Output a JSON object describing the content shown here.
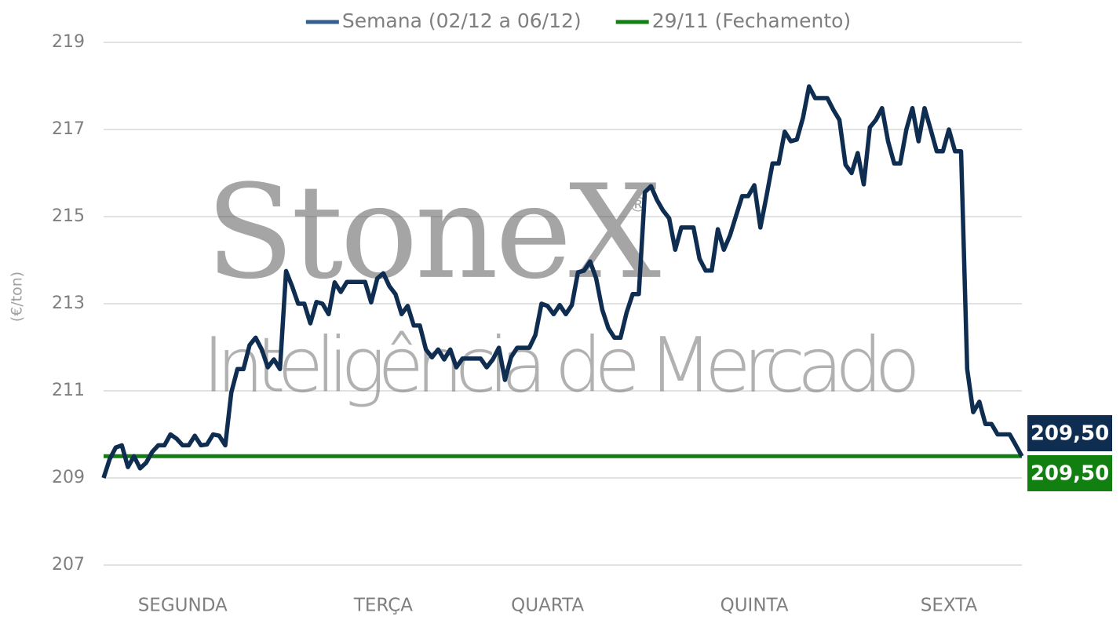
{
  "chart_data": {
    "type": "line",
    "y_label": "(€/ton)",
    "watermark": {
      "brand": "StoneX",
      "registered": "®",
      "tagline": "Inteligência de Mercado"
    },
    "categories": [
      null,
      null,
      null,
      null,
      null,
      null,
      null,
      null,
      null,
      null,
      null,
      null,
      null,
      "SEGUNDA",
      null,
      null,
      null,
      null,
      null,
      null,
      null,
      null,
      null,
      null,
      null,
      null,
      null,
      null,
      null,
      null,
      null,
      null,
      null,
      null,
      null,
      null,
      null,
      null,
      null,
      null,
      null,
      null,
      null,
      null,
      null,
      null,
      "TERÇA",
      null,
      null,
      null,
      null,
      null,
      null,
      null,
      null,
      null,
      null,
      null,
      null,
      null,
      null,
      null,
      null,
      null,
      null,
      null,
      null,
      null,
      null,
      null,
      null,
      null,
      null,
      "QUARTA",
      null,
      null,
      null,
      null,
      null,
      null,
      null,
      null,
      null,
      null,
      null,
      null,
      null,
      null,
      null,
      null,
      null,
      null,
      null,
      null,
      null,
      null,
      null,
      null,
      null,
      null,
      null,
      null,
      null,
      null,
      null,
      null,
      null,
      "QUINTA",
      null,
      null,
      null,
      null,
      null,
      null,
      null,
      null,
      null,
      null,
      null,
      null,
      null,
      null,
      null,
      null,
      null,
      null,
      null,
      null,
      null,
      null,
      null,
      null,
      null,
      null,
      null,
      null,
      null,
      null,
      null,
      "SEXTA",
      null,
      null,
      null,
      null,
      null,
      null,
      null,
      null,
      null,
      null,
      null,
      null
    ],
    "series": [
      {
        "name": "Semana (02/12 a 06/12)",
        "color": "#0e2d50",
        "legend_color": "#355f8d",
        "end_label": "209,50",
        "values": [
          209.0,
          209.43,
          209.7,
          209.75,
          209.25,
          209.5,
          209.22,
          209.35,
          209.6,
          209.75,
          209.75,
          210.0,
          209.9,
          209.75,
          209.75,
          209.97,
          209.75,
          209.77,
          210.0,
          209.97,
          209.75,
          210.96,
          211.5,
          211.5,
          212.05,
          212.22,
          211.95,
          211.54,
          211.72,
          211.5,
          213.75,
          213.4,
          213.0,
          213.0,
          212.55,
          213.04,
          213.0,
          212.76,
          213.49,
          213.27,
          213.5,
          213.5,
          213.5,
          213.5,
          213.03,
          213.58,
          213.7,
          213.4,
          213.22,
          212.76,
          212.95,
          212.5,
          212.5,
          211.95,
          211.77,
          211.95,
          211.72,
          211.95,
          211.54,
          211.74,
          211.74,
          211.74,
          211.74,
          211.54,
          211.72,
          211.99,
          211.25,
          211.77,
          211.99,
          211.99,
          211.99,
          212.28,
          213.0,
          212.95,
          212.76,
          212.97,
          212.76,
          212.97,
          213.72,
          213.76,
          213.97,
          213.58,
          212.86,
          212.44,
          212.22,
          212.22,
          212.8,
          213.22,
          213.22,
          215.56,
          215.7,
          215.38,
          215.14,
          214.96,
          214.24,
          214.75,
          214.75,
          214.75,
          214.03,
          213.76,
          213.76,
          214.71,
          214.24,
          214.57,
          215.02,
          215.47,
          215.47,
          215.72,
          214.75,
          215.47,
          216.22,
          216.22,
          216.95,
          216.73,
          216.77,
          217.27,
          217.99,
          217.72,
          217.72,
          217.72,
          217.45,
          217.22,
          216.19,
          216.0,
          216.46,
          215.74,
          217.05,
          217.22,
          217.49,
          216.73,
          216.22,
          216.22,
          217.0,
          217.49,
          216.73,
          217.49,
          217.0,
          216.5,
          216.5,
          217.0,
          216.5,
          216.5,
          211.5,
          210.51,
          210.75,
          210.24,
          210.24,
          210.0,
          210.0,
          210.0,
          209.75,
          209.5
        ]
      },
      {
        "name": "29/11 (Fechamento)",
        "color": "#118011",
        "legend_color": "#118011",
        "end_label": "209,50",
        "values": [
          209.5,
          209.5,
          209.5,
          209.5,
          209.5,
          209.5,
          209.5,
          209.5,
          209.5,
          209.5,
          209.5,
          209.5,
          209.5,
          209.5,
          209.5,
          209.5,
          209.5,
          209.5,
          209.5,
          209.5,
          209.5,
          209.5,
          209.5,
          209.5,
          209.5,
          209.5,
          209.5,
          209.5,
          209.5,
          209.5,
          209.5,
          209.5,
          209.5,
          209.5,
          209.5,
          209.5,
          209.5,
          209.5,
          209.5,
          209.5,
          209.5,
          209.5,
          209.5,
          209.5,
          209.5,
          209.5,
          209.5,
          209.5,
          209.5,
          209.5,
          209.5,
          209.5,
          209.5,
          209.5,
          209.5,
          209.5,
          209.5,
          209.5,
          209.5,
          209.5,
          209.5,
          209.5,
          209.5,
          209.5,
          209.5,
          209.5,
          209.5,
          209.5,
          209.5,
          209.5,
          209.5,
          209.5,
          209.5,
          209.5,
          209.5,
          209.5,
          209.5,
          209.5,
          209.5,
          209.5,
          209.5,
          209.5,
          209.5,
          209.5,
          209.5,
          209.5,
          209.5,
          209.5,
          209.5,
          209.5,
          209.5,
          209.5,
          209.5,
          209.5,
          209.5,
          209.5,
          209.5,
          209.5,
          209.5,
          209.5,
          209.5,
          209.5,
          209.5,
          209.5,
          209.5,
          209.5,
          209.5,
          209.5,
          209.5,
          209.5,
          209.5,
          209.5,
          209.5,
          209.5,
          209.5,
          209.5,
          209.5,
          209.5,
          209.5,
          209.5,
          209.5,
          209.5,
          209.5,
          209.5,
          209.5,
          209.5,
          209.5,
          209.5,
          209.5,
          209.5,
          209.5,
          209.5,
          209.5,
          209.5,
          209.5,
          209.5,
          209.5,
          209.5,
          209.5,
          209.5,
          209.5,
          209.5,
          209.5,
          209.5,
          209.5,
          209.5,
          209.5,
          209.5,
          209.5,
          209.5,
          209.5,
          209.5
        ]
      }
    ],
    "ylim": [
      207,
      219
    ],
    "yticks": [
      207,
      209,
      211,
      213,
      215,
      217,
      219
    ],
    "grid": true,
    "legend": "top"
  }
}
